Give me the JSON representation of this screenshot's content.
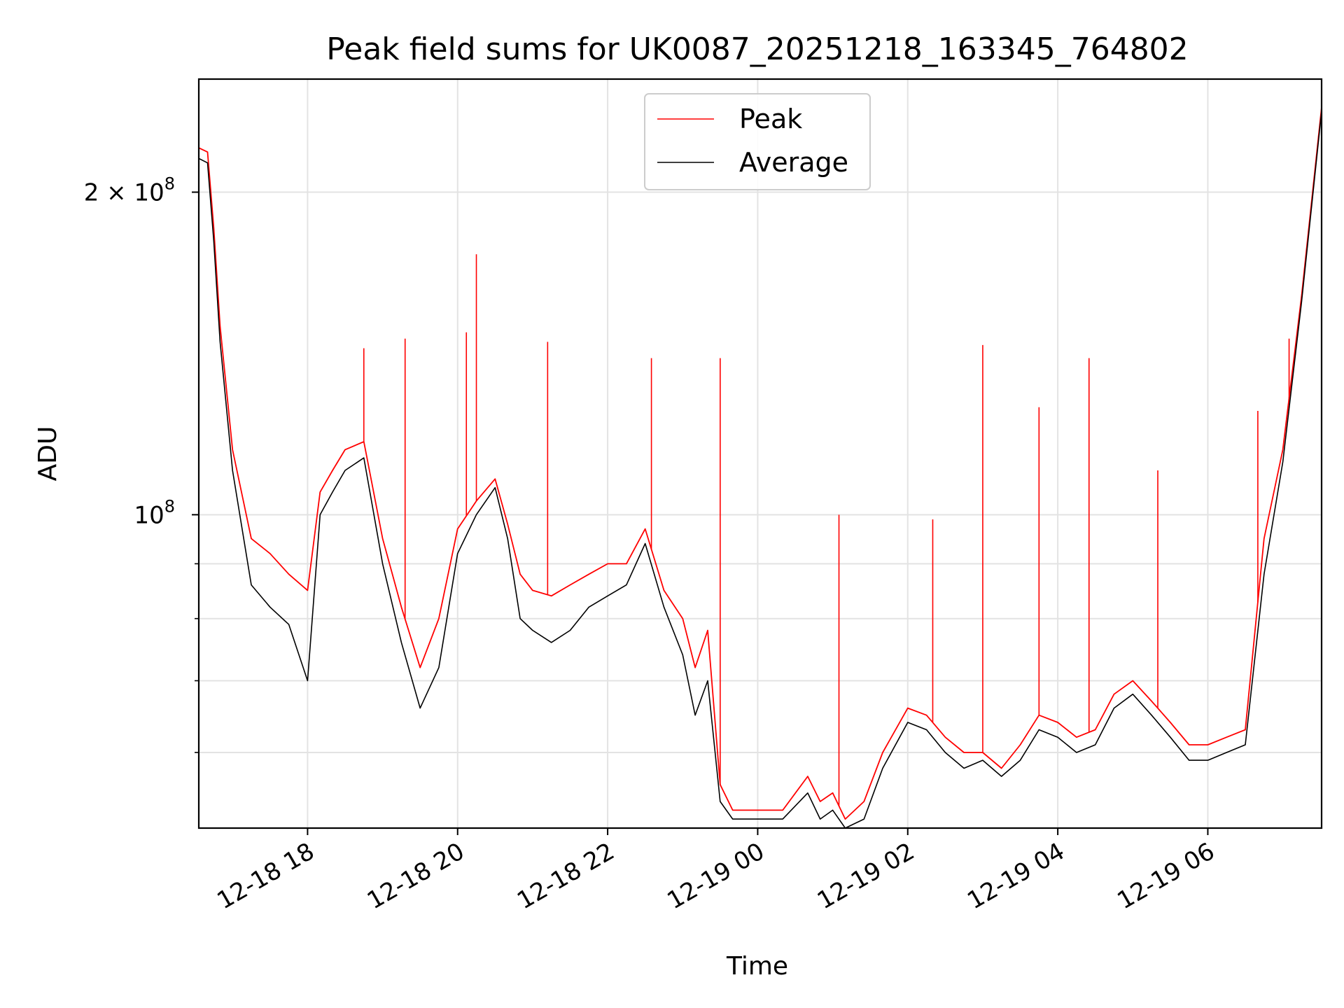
{
  "chart_data": {
    "type": "line",
    "title": "Peak field sums for UK0087_20251218_163345_764802",
    "xlabel": "Time",
    "ylabel": "ADU",
    "y_scale": "log",
    "ylim": [
      51000000,
      255000000
    ],
    "xlim": [
      "2025-12-18 16:33",
      "2025-12-19 07:31"
    ],
    "grid": true,
    "legend_position": "top-center",
    "x_tick_labels": [
      "12-18 18",
      "12-18 20",
      "12-18 22",
      "12-19 00",
      "12-19 02",
      "12-19 04",
      "12-19 06"
    ],
    "x_ticks": [
      "2025-12-18 18:00",
      "2025-12-18 20:00",
      "2025-12-18 22:00",
      "2025-12-19 00:00",
      "2025-12-19 02:00",
      "2025-12-19 04:00",
      "2025-12-19 06:00"
    ],
    "y_tick_labels": [
      {
        "value": 200000000,
        "mantissa": "2",
        "exponent": "8"
      },
      {
        "value": 100000000,
        "mantissa": "",
        "exponent": "8"
      }
    ],
    "y_minor_ticks": [
      60000000,
      70000000,
      80000000,
      90000000
    ],
    "series": [
      {
        "name": "Peak",
        "color": "#ff0000",
        "x": [
          "2025-12-18 16:33",
          "2025-12-18 16:40",
          "2025-12-18 16:45",
          "2025-12-18 16:50",
          "2025-12-18 17:00",
          "2025-12-18 17:15",
          "2025-12-18 17:30",
          "2025-12-18 17:45",
          "2025-12-18 18:00",
          "2025-12-18 18:10",
          "2025-12-18 18:20",
          "2025-12-18 18:30",
          "2025-12-18 18:45",
          "2025-12-18 19:00",
          "2025-12-18 19:15",
          "2025-12-18 19:30",
          "2025-12-18 19:45",
          "2025-12-18 20:00",
          "2025-12-18 20:15",
          "2025-12-18 20:30",
          "2025-12-18 20:40",
          "2025-12-18 20:50",
          "2025-12-18 21:00",
          "2025-12-18 21:15",
          "2025-12-18 21:30",
          "2025-12-18 21:45",
          "2025-12-18 22:00",
          "2025-12-18 22:15",
          "2025-12-18 22:30",
          "2025-12-18 22:45",
          "2025-12-18 23:00",
          "2025-12-18 23:10",
          "2025-12-18 23:20",
          "2025-12-18 23:30",
          "2025-12-18 23:40",
          "2025-12-19 00:00",
          "2025-12-19 00:20",
          "2025-12-19 00:40",
          "2025-12-19 00:50",
          "2025-12-19 01:00",
          "2025-12-19 01:10",
          "2025-12-19 01:25",
          "2025-12-19 01:40",
          "2025-12-19 02:00",
          "2025-12-19 02:15",
          "2025-12-19 02:30",
          "2025-12-19 02:45",
          "2025-12-19 03:00",
          "2025-12-19 03:15",
          "2025-12-19 03:30",
          "2025-12-19 03:45",
          "2025-12-19 04:00",
          "2025-12-19 04:15",
          "2025-12-19 04:30",
          "2025-12-19 04:45",
          "2025-12-19 05:00",
          "2025-12-19 05:15",
          "2025-12-19 05:30",
          "2025-12-19 05:45",
          "2025-12-19 06:00",
          "2025-12-19 06:15",
          "2025-12-19 06:30",
          "2025-12-19 06:45",
          "2025-12-19 07:00",
          "2025-12-19 07:15",
          "2025-12-19 07:31"
        ],
        "values": [
          220000000,
          218000000,
          185000000,
          150000000,
          115000000,
          95000000,
          92000000,
          88000000,
          85000000,
          105000000,
          110000000,
          115000000,
          117000000,
          95000000,
          82000000,
          72000000,
          80000000,
          97000000,
          103000000,
          108000000,
          98000000,
          88000000,
          85000000,
          84000000,
          86000000,
          88000000,
          90000000,
          90000000,
          97000000,
          85000000,
          80000000,
          72000000,
          78000000,
          56000000,
          53000000,
          53000000,
          53000000,
          57000000,
          54000000,
          55000000,
          52000000,
          54000000,
          60000000,
          66000000,
          65000000,
          62000000,
          60000000,
          60000000,
          58000000,
          61000000,
          65000000,
          64000000,
          62000000,
          63000000,
          68000000,
          70000000,
          67000000,
          64000000,
          61000000,
          61000000,
          62000000,
          63000000,
          95000000,
          115000000,
          160000000,
          240000000
        ],
        "spikes": [
          {
            "x": "2025-12-18 20:15",
            "value": 175000000
          },
          {
            "x": "2025-12-18 20:07",
            "value": 148000000
          },
          {
            "x": "2025-12-18 21:12",
            "value": 145000000
          },
          {
            "x": "2025-12-18 19:18",
            "value": 146000000
          },
          {
            "x": "2025-12-18 18:45",
            "value": 143000000
          },
          {
            "x": "2025-12-18 22:35",
            "value": 140000000
          },
          {
            "x": "2025-12-18 23:30",
            "value": 140000000
          },
          {
            "x": "2025-12-19 03:00",
            "value": 144000000
          },
          {
            "x": "2025-12-19 04:25",
            "value": 140000000
          },
          {
            "x": "2025-12-19 06:40",
            "value": 125000000
          },
          {
            "x": "2025-12-19 07:05",
            "value": 146000000
          },
          {
            "x": "2025-12-19 01:05",
            "value": 100000000
          },
          {
            "x": "2025-12-19 02:20",
            "value": 99000000
          },
          {
            "x": "2025-12-19 03:45",
            "value": 126000000
          },
          {
            "x": "2025-12-19 05:20",
            "value": 110000000
          }
        ]
      },
      {
        "name": "Average",
        "color": "#000000",
        "x": [
          "2025-12-18 16:33",
          "2025-12-18 16:40",
          "2025-12-18 16:45",
          "2025-12-18 16:50",
          "2025-12-18 17:00",
          "2025-12-18 17:15",
          "2025-12-18 17:30",
          "2025-12-18 17:45",
          "2025-12-18 18:00",
          "2025-12-18 18:10",
          "2025-12-18 18:20",
          "2025-12-18 18:30",
          "2025-12-18 18:45",
          "2025-12-18 19:00",
          "2025-12-18 19:15",
          "2025-12-18 19:30",
          "2025-12-18 19:45",
          "2025-12-18 20:00",
          "2025-12-18 20:15",
          "2025-12-18 20:30",
          "2025-12-18 20:40",
          "2025-12-18 20:50",
          "2025-12-18 21:00",
          "2025-12-18 21:15",
          "2025-12-18 21:30",
          "2025-12-18 21:45",
          "2025-12-18 22:00",
          "2025-12-18 22:15",
          "2025-12-18 22:30",
          "2025-12-18 22:45",
          "2025-12-18 23:00",
          "2025-12-18 23:10",
          "2025-12-18 23:20",
          "2025-12-18 23:30",
          "2025-12-18 23:40",
          "2025-12-19 00:00",
          "2025-12-19 00:20",
          "2025-12-19 00:40",
          "2025-12-19 00:50",
          "2025-12-19 01:00",
          "2025-12-19 01:10",
          "2025-12-19 01:25",
          "2025-12-19 01:40",
          "2025-12-19 02:00",
          "2025-12-19 02:15",
          "2025-12-19 02:30",
          "2025-12-19 02:45",
          "2025-12-19 03:00",
          "2025-12-19 03:15",
          "2025-12-19 03:30",
          "2025-12-19 03:45",
          "2025-12-19 04:00",
          "2025-12-19 04:15",
          "2025-12-19 04:30",
          "2025-12-19 04:45",
          "2025-12-19 05:00",
          "2025-12-19 05:15",
          "2025-12-19 05:30",
          "2025-12-19 05:45",
          "2025-12-19 06:00",
          "2025-12-19 06:15",
          "2025-12-19 06:30",
          "2025-12-19 06:45",
          "2025-12-19 07:00",
          "2025-12-19 07:15",
          "2025-12-19 07:31"
        ],
        "values": [
          215000000,
          213000000,
          180000000,
          145000000,
          110000000,
          86000000,
          82000000,
          79000000,
          70000000,
          100000000,
          105000000,
          110000000,
          113000000,
          90000000,
          76000000,
          66000000,
          72000000,
          92000000,
          100000000,
          106000000,
          95000000,
          80000000,
          78000000,
          76000000,
          78000000,
          82000000,
          84000000,
          86000000,
          94000000,
          82000000,
          74000000,
          65000000,
          70000000,
          54000000,
          52000000,
          52000000,
          52000000,
          55000000,
          52000000,
          53000000,
          51000000,
          52000000,
          58000000,
          64000000,
          63000000,
          60000000,
          58000000,
          59000000,
          57000000,
          59000000,
          63000000,
          62000000,
          60000000,
          61000000,
          66000000,
          68000000,
          65000000,
          62000000,
          59000000,
          59000000,
          60000000,
          61000000,
          88000000,
          112000000,
          158000000,
          238000000
        ]
      }
    ]
  }
}
